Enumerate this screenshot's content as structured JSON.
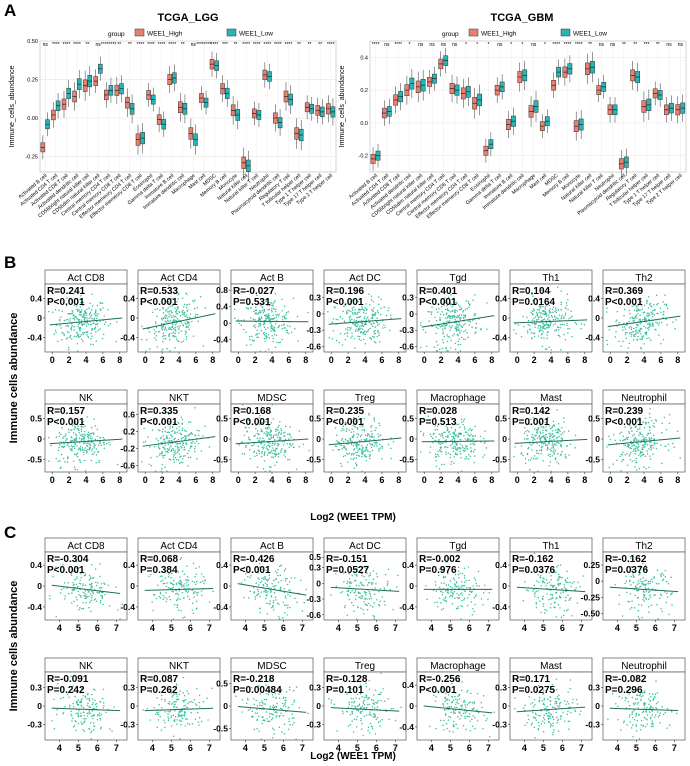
{
  "figure": {
    "panels": {
      "A": {
        "letter": "A"
      },
      "B": {
        "letter": "B",
        "ylabel": "Immune cells abundance",
        "xlabel": "Log2 (WEE1 TPM)"
      },
      "C": {
        "letter": "C",
        "ylabel": "Immune cells abundance",
        "xlabel": "Log2 (WEE1 TPM)"
      }
    }
  },
  "chart_data": [
    {
      "id": "A_LGG",
      "type": "box",
      "title": "TCGA_LGG",
      "ylabel": "Immune_cells_abundance",
      "legend": {
        "title": "group",
        "placement": "top",
        "entries": [
          "WEE1_High",
          "WEE1_Low"
        ],
        "colors": [
          "#e9806f",
          "#25b7b7"
        ]
      },
      "ylim": [
        -0.35,
        0.5
      ],
      "yticks": [
        -0.25,
        0.0,
        0.25,
        0.5
      ],
      "ytick_labels": [
        "-0.25",
        "0.00",
        "0.25",
        "0.50"
      ],
      "categories": [
        "Activated B cell",
        "Activated CD4 T cell",
        "Activated CD8 T cell",
        "Activated dendritic cell",
        "CD56bright natural killer cell",
        "CD56dim natural killer cell",
        "Central memory CD4 T cell",
        "Central memory CD8 T cell",
        "Effector memeory CD4 T cell",
        "Effector memeory CD8 T cell",
        "Eosinophil",
        "Gamma delta T cell",
        "Immature B cell",
        "Immature dendritic cell",
        "Macrophage",
        "Mast cell",
        "MDSC",
        "Memory B cell",
        "Monocyte",
        "Natural killer cell",
        "Natural killer T cell",
        "Neutrophil",
        "Plasmacytoid dendritic cell",
        "Regulatory T cell",
        "T follicular helper cell",
        "Type 1 T helper cell",
        "Type 17 T helper cell",
        "Type 2 T helper cell"
      ],
      "significance": [
        "ns",
        "****",
        "****",
        "****",
        "**",
        "ns",
        "********",
        "**",
        "**",
        "****",
        "****",
        "****",
        "****",
        "**",
        "ns",
        "********",
        "****",
        "***",
        "**",
        "****",
        "****",
        "****",
        "****",
        "****",
        "**",
        "**",
        "**",
        "****"
      ],
      "series": [
        {
          "name": "WEE1_High",
          "median": [
            -0.19,
            0.02,
            0.09,
            0.14,
            0.21,
            0.24,
            0.15,
            0.18,
            0.1,
            -0.14,
            0.15,
            -0.01,
            0.25,
            0.07,
            -0.1,
            0.13,
            0.35,
            0.19,
            0.05,
            -0.29,
            0.03,
            0.28,
            0.0,
            0.14,
            -0.1,
            0.07,
            0.05,
            0.06
          ]
        },
        {
          "name": "WEE1_Low",
          "median": [
            -0.04,
            0.08,
            0.16,
            0.22,
            0.24,
            0.32,
            0.18,
            0.19,
            0.06,
            -0.13,
            0.12,
            -0.04,
            0.26,
            0.06,
            -0.14,
            0.1,
            0.34,
            0.16,
            0.02,
            -0.31,
            0.02,
            0.27,
            -0.03,
            0.12,
            -0.11,
            0.06,
            0.04,
            0.04
          ]
        }
      ]
    },
    {
      "id": "A_GBM",
      "type": "box",
      "title": "TCGA_GBM",
      "ylabel": "Immune_cells_abundance",
      "legend": {
        "title": "group",
        "placement": "top",
        "entries": [
          "WEE1_High",
          "WEE1_Low"
        ],
        "colors": [
          "#e9806f",
          "#25b7b7"
        ]
      },
      "ylim": [
        -0.3,
        0.5
      ],
      "yticks": [
        -0.2,
        0.0,
        0.2,
        0.4
      ],
      "ytick_labels": [
        "-0.2",
        "0.0",
        "0.2",
        "0.4"
      ],
      "categories": [
        "Activated B cell",
        "Activated CD4 T cell",
        "Activated CD8 T cell",
        "Activated dendritic cell",
        "CD56bright natural killer cell",
        "CD56dim natural killer cell",
        "Central memory CD4 T cell",
        "Central memory CD8 T cell",
        "Effector memeory CD4 T cell",
        "Effector memeory CD8 T cell",
        "Eosinophil",
        "Gamma delta T cell",
        "Immature B cell",
        "Immature dendritic cell",
        "Macrophage",
        "Mast cell",
        "MDSC",
        "Memory B cell",
        "Monocyte",
        "Natural killer cell",
        "Natural killer T cell",
        "Neutrophil",
        "Plasmacytoid dendritic cell",
        "Regulatory T cell",
        "T follicular helper cell",
        "Type 1 T helper cell",
        "Type 17 T helper cell",
        "Type 2 T helper cell"
      ],
      "significance": [
        "****",
        "ns",
        "****",
        "*",
        "ns",
        "ns",
        "ns",
        "ns",
        "*",
        "*",
        "*",
        "ns",
        "*",
        "*",
        "ns",
        "*",
        "****",
        "****",
        "****",
        "**",
        "ns",
        "ns",
        "**",
        "**",
        "***",
        "**",
        "ns",
        "ns"
      ],
      "series": [
        {
          "name": "WEE1_High",
          "median": [
            -0.22,
            0.06,
            0.14,
            0.2,
            0.22,
            0.25,
            0.36,
            0.21,
            0.18,
            0.12,
            -0.17,
            0.2,
            -0.01,
            0.28,
            0.07,
            -0.02,
            0.23,
            0.31,
            -0.02,
            0.33,
            0.2,
            0.08,
            -0.25,
            0.29,
            0.1,
            0.18,
            0.08,
            0.08
          ]
        },
        {
          "name": "WEE1_Low",
          "median": [
            -0.2,
            0.07,
            0.16,
            0.24,
            0.23,
            0.27,
            0.38,
            0.2,
            0.19,
            0.14,
            -0.13,
            0.22,
            0.01,
            0.29,
            0.1,
            0.01,
            0.31,
            0.33,
            -0.01,
            0.34,
            0.22,
            0.08,
            -0.24,
            0.28,
            0.11,
            0.17,
            0.09,
            0.09
          ]
        }
      ]
    },
    {
      "id": "B",
      "type": "scatter",
      "xlabel": "Log2 (WEE1 TPM)",
      "ylabel": "Immune cells abundance",
      "xticks": [
        0,
        2,
        4,
        6,
        8
      ],
      "subplots": [
        {
          "title": "Act CD8",
          "r": "R=0.241",
          "p": "P<0.001",
          "yticks": [
            -0.4,
            0,
            0.4
          ],
          "ytick_labels": [
            "-0.4",
            "0",
            "0.4"
          ],
          "ylim": [
            -0.7,
            0.7
          ],
          "slope": 0.241
        },
        {
          "title": "Act CD4",
          "r": "R=0.533",
          "p": "P<0.001",
          "yticks": [
            -0.4,
            0,
            0.4
          ],
          "ytick_labels": [
            "-0.4",
            "0",
            "0.4"
          ],
          "ylim": [
            -0.7,
            0.7
          ],
          "slope": 0.533
        },
        {
          "title": "Act B",
          "r": "R=-0.027",
          "p": "P=0.531",
          "yticks": [
            -0.4,
            0,
            0.4,
            0.8
          ],
          "ytick_labels": [
            "-0.4",
            "0",
            "0.4",
            "0.8"
          ],
          "ylim": [
            -0.7,
            0.95
          ],
          "slope": -0.027
        },
        {
          "title": "Act DC",
          "r": "R=0.196",
          "p": "P<0.001",
          "yticks": [
            -0.6,
            -0.3,
            0,
            0.3
          ],
          "ytick_labels": [
            "-0.6",
            "-0.3",
            "0",
            "0.3"
          ],
          "ylim": [
            -0.7,
            0.55
          ],
          "slope": 0.196
        },
        {
          "title": "Tgd",
          "r": "R=0.401",
          "p": "P<0.001",
          "yticks": [
            -0.6,
            -0.3,
            0,
            0.3
          ],
          "ytick_labels": [
            "-0.6",
            "-0.3",
            "0",
            "0.3"
          ],
          "ylim": [
            -0.7,
            0.55
          ],
          "slope": 0.401
        },
        {
          "title": "Th1",
          "r": "R=0.104",
          "p": "P=0.0164",
          "yticks": [
            -0.4,
            0,
            0.4
          ],
          "ytick_labels": [
            "-0.4",
            "0",
            "0.4"
          ],
          "ylim": [
            -0.7,
            0.7
          ],
          "slope": 0.104
        },
        {
          "title": "Th2",
          "r": "R=0.369",
          "p": "P<0.001",
          "yticks": [
            -0.4,
            0,
            0.4
          ],
          "ytick_labels": [
            "-0.4",
            "0",
            "0.4"
          ],
          "ylim": [
            -0.7,
            0.7
          ],
          "slope": 0.369
        },
        {
          "title": "NK",
          "r": "R=0.157",
          "p": "P<0.001",
          "yticks": [
            -0.5,
            0,
            0.5
          ],
          "ytick_labels": [
            "-0.5",
            "0",
            "0.5"
          ],
          "ylim": [
            -0.8,
            0.85
          ],
          "slope": 0.157
        },
        {
          "title": "NKT",
          "r": "R=0.335",
          "p": "P<0.001",
          "yticks": [
            -0.6,
            -0.2,
            0.2,
            0.6
          ],
          "ytick_labels": [
            "-0.6",
            "-0.2",
            "0.2",
            "0.6"
          ],
          "ylim": [
            -0.75,
            0.85
          ],
          "slope": 0.335
        },
        {
          "title": "MDSC",
          "r": "R=0.168",
          "p": "P<0.001",
          "yticks": [
            -0.5,
            0,
            0.5
          ],
          "ytick_labels": [
            "-0.5",
            "0",
            "0.5"
          ],
          "ylim": [
            -0.8,
            0.85
          ],
          "slope": 0.168
        },
        {
          "title": "Treg",
          "r": "R=0.235",
          "p": "P<0.001",
          "yticks": [
            -0.5,
            0,
            0.5
          ],
          "ytick_labels": [
            "-0.5",
            "0",
            "0.5"
          ],
          "ylim": [
            -0.8,
            0.85
          ],
          "slope": 0.235
        },
        {
          "title": "Macrophage",
          "r": "R=0.028",
          "p": "P=0.513",
          "yticks": [
            -0.5,
            0,
            0.5
          ],
          "ytick_labels": [
            "-0.5",
            "0",
            "0.5"
          ],
          "ylim": [
            -0.8,
            0.85
          ],
          "slope": 0.028
        },
        {
          "title": "Mast",
          "r": "R=0.142",
          "p": "P=0.001",
          "yticks": [
            -0.5,
            0,
            0.5
          ],
          "ytick_labels": [
            "-0.5",
            "0",
            "0.5"
          ],
          "ylim": [
            -0.8,
            0.85
          ],
          "slope": 0.142
        },
        {
          "title": "Neutrophil",
          "r": "R=0.239",
          "p": "P<0.001",
          "yticks": [
            -0.5,
            0,
            0.5
          ],
          "ytick_labels": [
            "-0.5",
            "0",
            "0.5"
          ],
          "ylim": [
            -0.8,
            0.85
          ],
          "slope": 0.239
        }
      ]
    },
    {
      "id": "C",
      "type": "scatter",
      "xlabel": "Log2 (WEE1 TPM)",
      "ylabel": "Immune cells abundance",
      "xticks": [
        4,
        5,
        6,
        7
      ],
      "subplots": [
        {
          "title": "Act CD8",
          "r": "R=-0.304",
          "p": "P<0.001",
          "yticks": [
            -0.4,
            0,
            0.4
          ],
          "ytick_labels": [
            "-0.4",
            "0",
            "0.4"
          ],
          "ylim": [
            -0.65,
            0.65
          ],
          "slope": -0.304
        },
        {
          "title": "Act CD4",
          "r": "R=0.068",
          "p": "P=0.384",
          "yticks": [
            -0.4,
            0,
            0.4
          ],
          "ytick_labels": [
            "-0.4",
            "0",
            "0.4"
          ],
          "ylim": [
            -0.65,
            0.65
          ],
          "slope": 0.068
        },
        {
          "title": "Act B",
          "r": "R=-0.426",
          "p": "P<0.001",
          "yticks": [
            -0.4,
            0,
            0.4
          ],
          "ytick_labels": [
            "-0.4",
            "0",
            "0.4"
          ],
          "ylim": [
            -0.65,
            0.65
          ],
          "slope": -0.426
        },
        {
          "title": "Act DC",
          "r": "R=-0.151",
          "p": "P=0.0527",
          "yticks": [
            -0.6,
            -0.3,
            0,
            0.3,
            0.5
          ],
          "ytick_labels": [
            "-0.6",
            "-0.3",
            "0",
            "0.3",
            "0.5"
          ],
          "ylim": [
            -0.7,
            0.6
          ],
          "slope": -0.151
        },
        {
          "title": "Tgd",
          "r": "R=-0.002",
          "p": "P=0.976",
          "yticks": [
            -0.4,
            0,
            0.4
          ],
          "ytick_labels": [
            "-0.4",
            "0",
            "0.4"
          ],
          "ylim": [
            -0.65,
            0.65
          ],
          "slope": -0.002
        },
        {
          "title": "Th1",
          "r": "R=-0.162",
          "p": "P=0.0376",
          "yticks": [
            -0.4,
            0,
            0.4
          ],
          "ytick_labels": [
            "-0.4",
            "0",
            "0.4"
          ],
          "ylim": [
            -0.65,
            0.65
          ],
          "slope": -0.162
        },
        {
          "title": "Th2",
          "r": "R=-0.162",
          "p": "P=0.0376",
          "yticks": [
            -0.5,
            -0.25,
            0,
            0.25
          ],
          "ytick_labels": [
            "-0.50",
            "-0.25",
            "0",
            "0.25"
          ],
          "ylim": [
            -0.6,
            0.45
          ],
          "slope": -0.162
        },
        {
          "title": "NK",
          "r": "R=-0.091",
          "p": "P=0.242",
          "yticks": [
            -0.3,
            0,
            0.3
          ],
          "ytick_labels": [
            "-0.3",
            "0",
            "0.3"
          ],
          "ylim": [
            -0.55,
            0.55
          ],
          "slope": -0.091
        },
        {
          "title": "NKT",
          "r": "R=0.087",
          "p": "P=0.262",
          "yticks": [
            -0.3,
            0,
            0.3
          ],
          "ytick_labels": [
            "-0.3",
            "0",
            "0.3"
          ],
          "ylim": [
            -0.55,
            0.55
          ],
          "slope": 0.087
        },
        {
          "title": "MDSC",
          "r": "R=-0.218",
          "p": "P=0.00484",
          "yticks": [
            -0.5,
            0,
            0.5
          ],
          "ytick_labels": [
            "-0.5",
            "0",
            "0.5"
          ],
          "ylim": [
            -0.75,
            0.75
          ],
          "slope": -0.218
        },
        {
          "title": "Treg",
          "r": "R=-0.128",
          "p": "P=0.101",
          "yticks": [
            -0.3,
            0,
            0.3
          ],
          "ytick_labels": [
            "-0.3",
            "0",
            "0.3"
          ],
          "ylim": [
            -0.55,
            0.55
          ],
          "slope": -0.128
        },
        {
          "title": "Macrophage",
          "r": "R=-0.256",
          "p": "P<0.001",
          "yticks": [
            -0.4,
            0,
            0.4
          ],
          "ytick_labels": [
            "-0.4",
            "0",
            "0.4"
          ],
          "ylim": [
            -0.65,
            0.65
          ],
          "slope": -0.256
        },
        {
          "title": "Mast",
          "r": "R=0.171",
          "p": "P=0.0275",
          "yticks": [
            -0.3,
            0,
            0.3
          ],
          "ytick_labels": [
            "-0.3",
            "0",
            "0.3"
          ],
          "ylim": [
            -0.55,
            0.55
          ],
          "slope": 0.171
        },
        {
          "title": "Neutrophil",
          "r": "R=-0.082",
          "p": "P=0.296",
          "yticks": [
            -0.3,
            0,
            0.3
          ],
          "ytick_labels": [
            "-0.3",
            "0",
            "0.3"
          ],
          "ylim": [
            -0.55,
            0.55
          ],
          "slope": -0.082
        }
      ]
    }
  ],
  "colors": {
    "high": "#e9806f",
    "low": "#25b7b7",
    "point": "#3cc09c",
    "line": "#1f6e5a",
    "grid": "#e6e6e6"
  }
}
